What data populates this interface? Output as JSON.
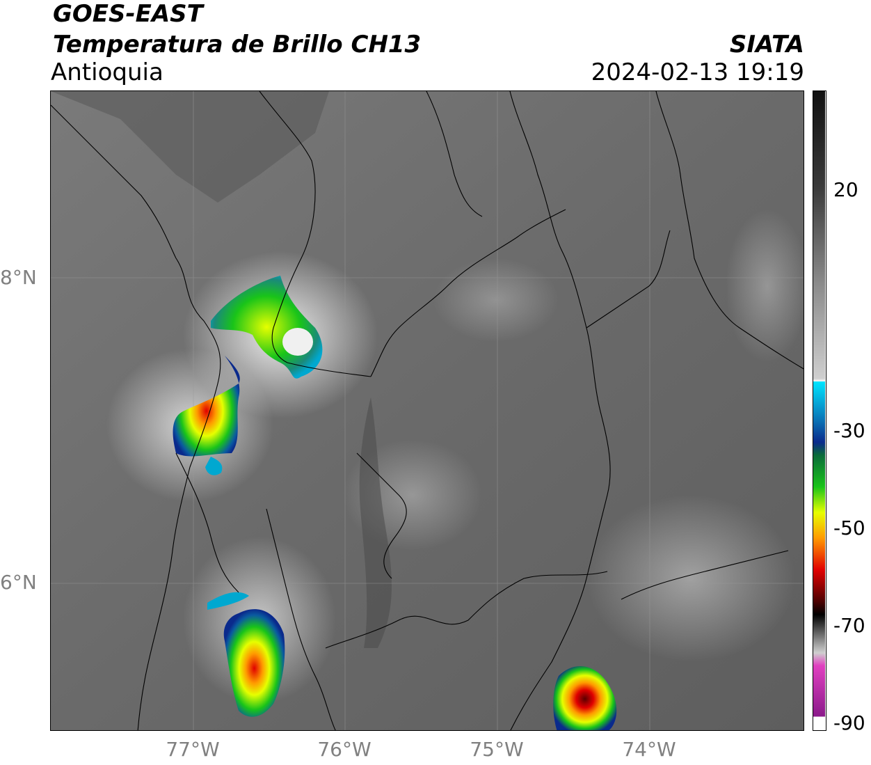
{
  "title": {
    "satellite": "GOES-EAST",
    "product": "Temperatura de Brillo CH13",
    "region": "Antioquia",
    "org": "SIATA",
    "datetime": "2024-02-13 19:19"
  },
  "axes": {
    "lat_labels": [
      "8°N",
      "6°N"
    ],
    "lon_labels": [
      "77°W",
      "76°W",
      "75°W",
      "74°W"
    ]
  },
  "colorbar": {
    "tick_labels": [
      "20",
      "-30",
      "-50",
      "-70",
      "-90"
    ],
    "colors": {
      "warm_gray_dark": "#3a3a3a",
      "warm_gray_mid": "#8a8a8a",
      "white": "#ffffff",
      "cyan": "#00e5ff",
      "blue": "#0a2a8c",
      "green": "#19c419",
      "yellow": "#e6ff00",
      "orange": "#ff9a00",
      "red": "#e00000",
      "dark_red": "#4a0000",
      "black": "#000000",
      "magenta": "#e040c0",
      "purple": "#8a1a8a"
    }
  },
  "map": {
    "background": "#6e6e6e"
  }
}
